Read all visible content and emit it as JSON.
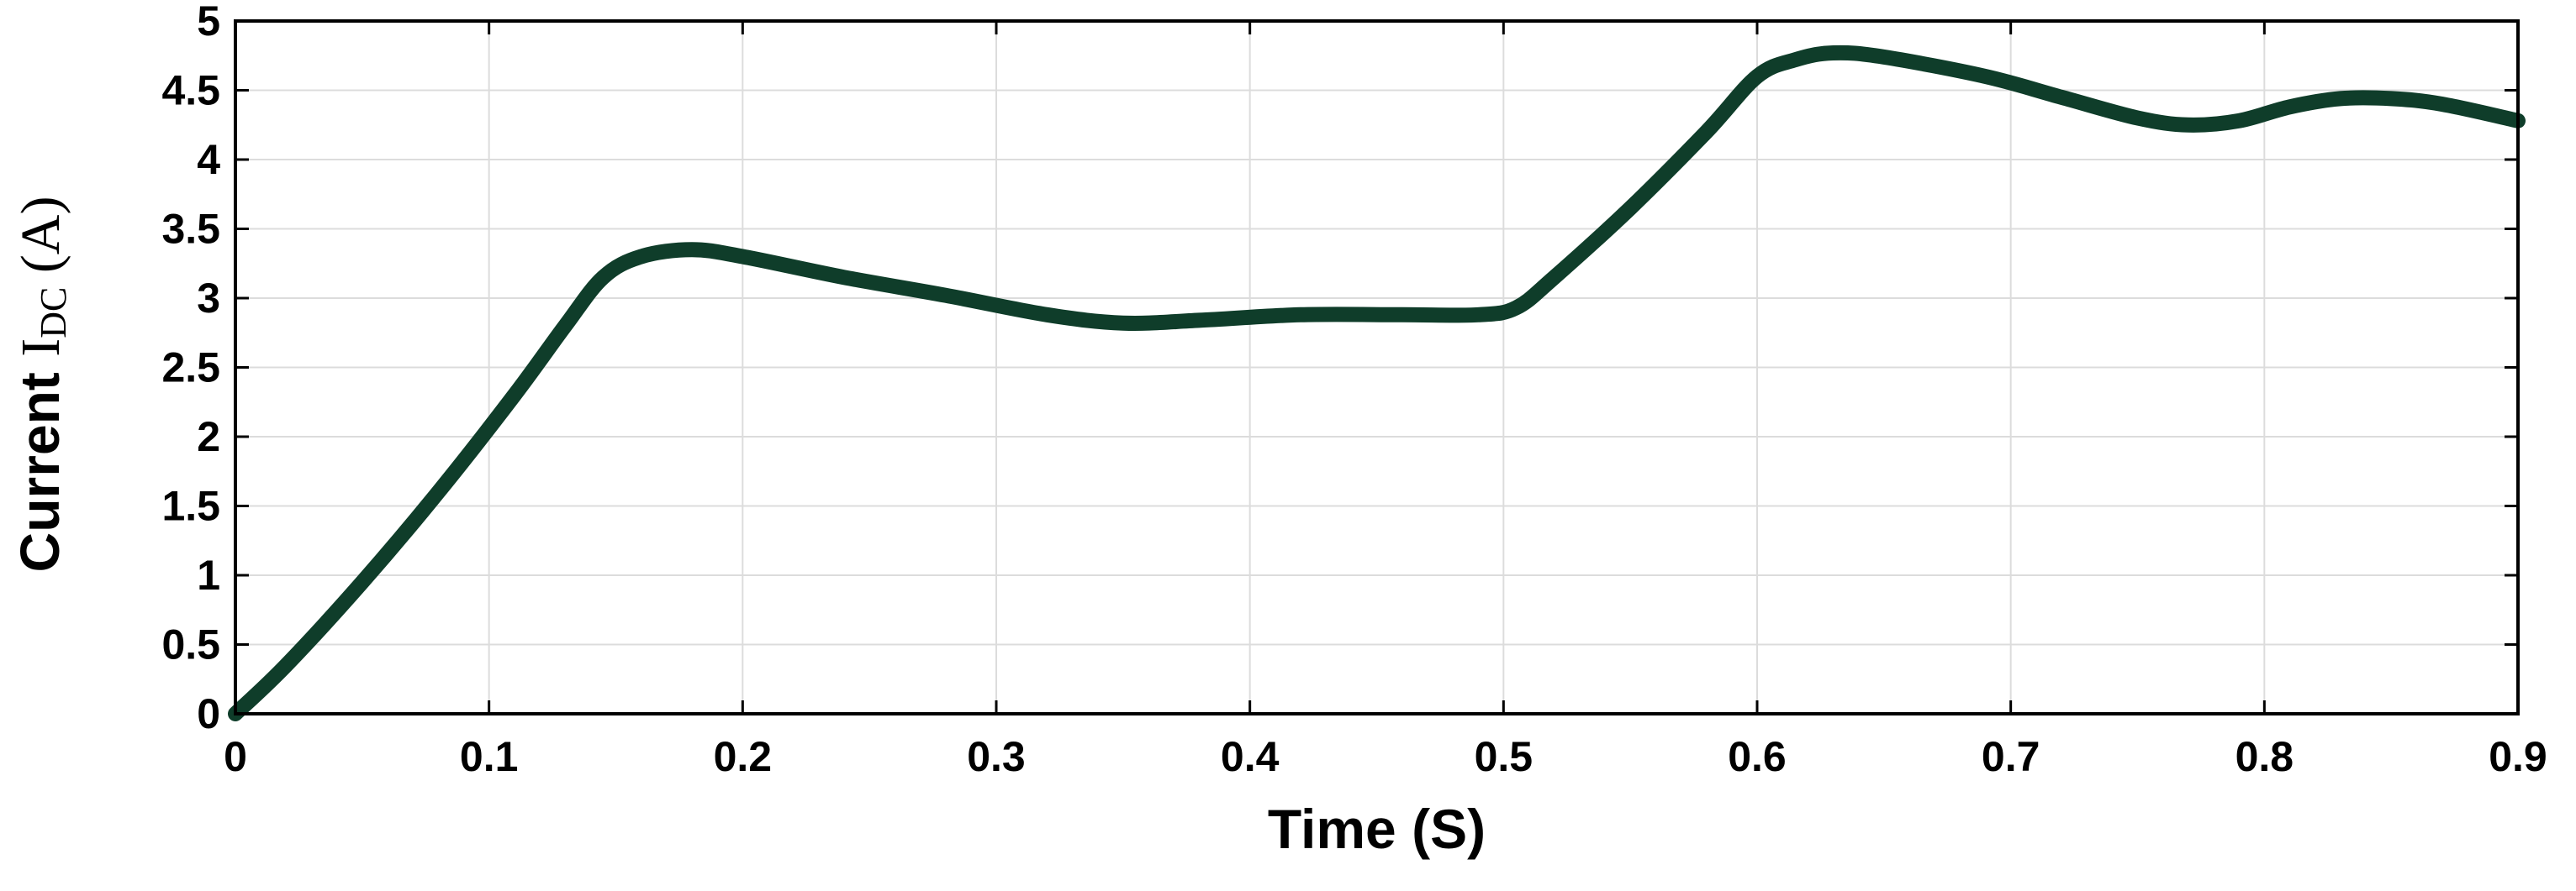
{
  "chart_data": {
    "type": "line",
    "xlabel": "Time (S)",
    "ylabel": {
      "prefix": "Current ",
      "main": "I",
      "sub": "DC",
      "suffix": " (A)"
    },
    "xlim": [
      0,
      0.9
    ],
    "ylim": [
      0,
      5
    ],
    "xticks": [
      0,
      0.1,
      0.2,
      0.3,
      0.4,
      0.5,
      0.6,
      0.7,
      0.8,
      0.9
    ],
    "xtick_labels": [
      "0",
      "0.1",
      "0.2",
      "0.3",
      "0.4",
      "0.5",
      "0.6",
      "0.7",
      "0.8",
      "0.9"
    ],
    "yticks": [
      0,
      0.5,
      1,
      1.5,
      2,
      2.5,
      3,
      3.5,
      4,
      4.5,
      5
    ],
    "ytick_labels": [
      "0",
      "0.5",
      "1",
      "1.5",
      "2",
      "2.5",
      "3",
      "3.5",
      "4",
      "4.5",
      "5"
    ],
    "grid": true,
    "line_color": "#0f3d2a",
    "series": [
      {
        "x": [
          0,
          0.02,
          0.05,
          0.08,
          0.11,
          0.13,
          0.145,
          0.16,
          0.18,
          0.2,
          0.24,
          0.28,
          0.32,
          0.35,
          0.38,
          0.42,
          0.46,
          0.49,
          0.505,
          0.52,
          0.55,
          0.58,
          0.6,
          0.615,
          0.63,
          0.65,
          0.69,
          0.72,
          0.75,
          0.77,
          0.79,
          0.81,
          0.83,
          0.85,
          0.87,
          0.9
        ],
        "y": [
          0,
          0.35,
          0.95,
          1.6,
          2.3,
          2.8,
          3.15,
          3.3,
          3.35,
          3.3,
          3.15,
          3.02,
          2.88,
          2.82,
          2.84,
          2.88,
          2.88,
          2.88,
          2.93,
          3.15,
          3.65,
          4.2,
          4.6,
          4.72,
          4.77,
          4.74,
          4.6,
          4.45,
          4.3,
          4.25,
          4.28,
          4.38,
          4.44,
          4.44,
          4.4,
          4.28
        ]
      }
    ]
  }
}
